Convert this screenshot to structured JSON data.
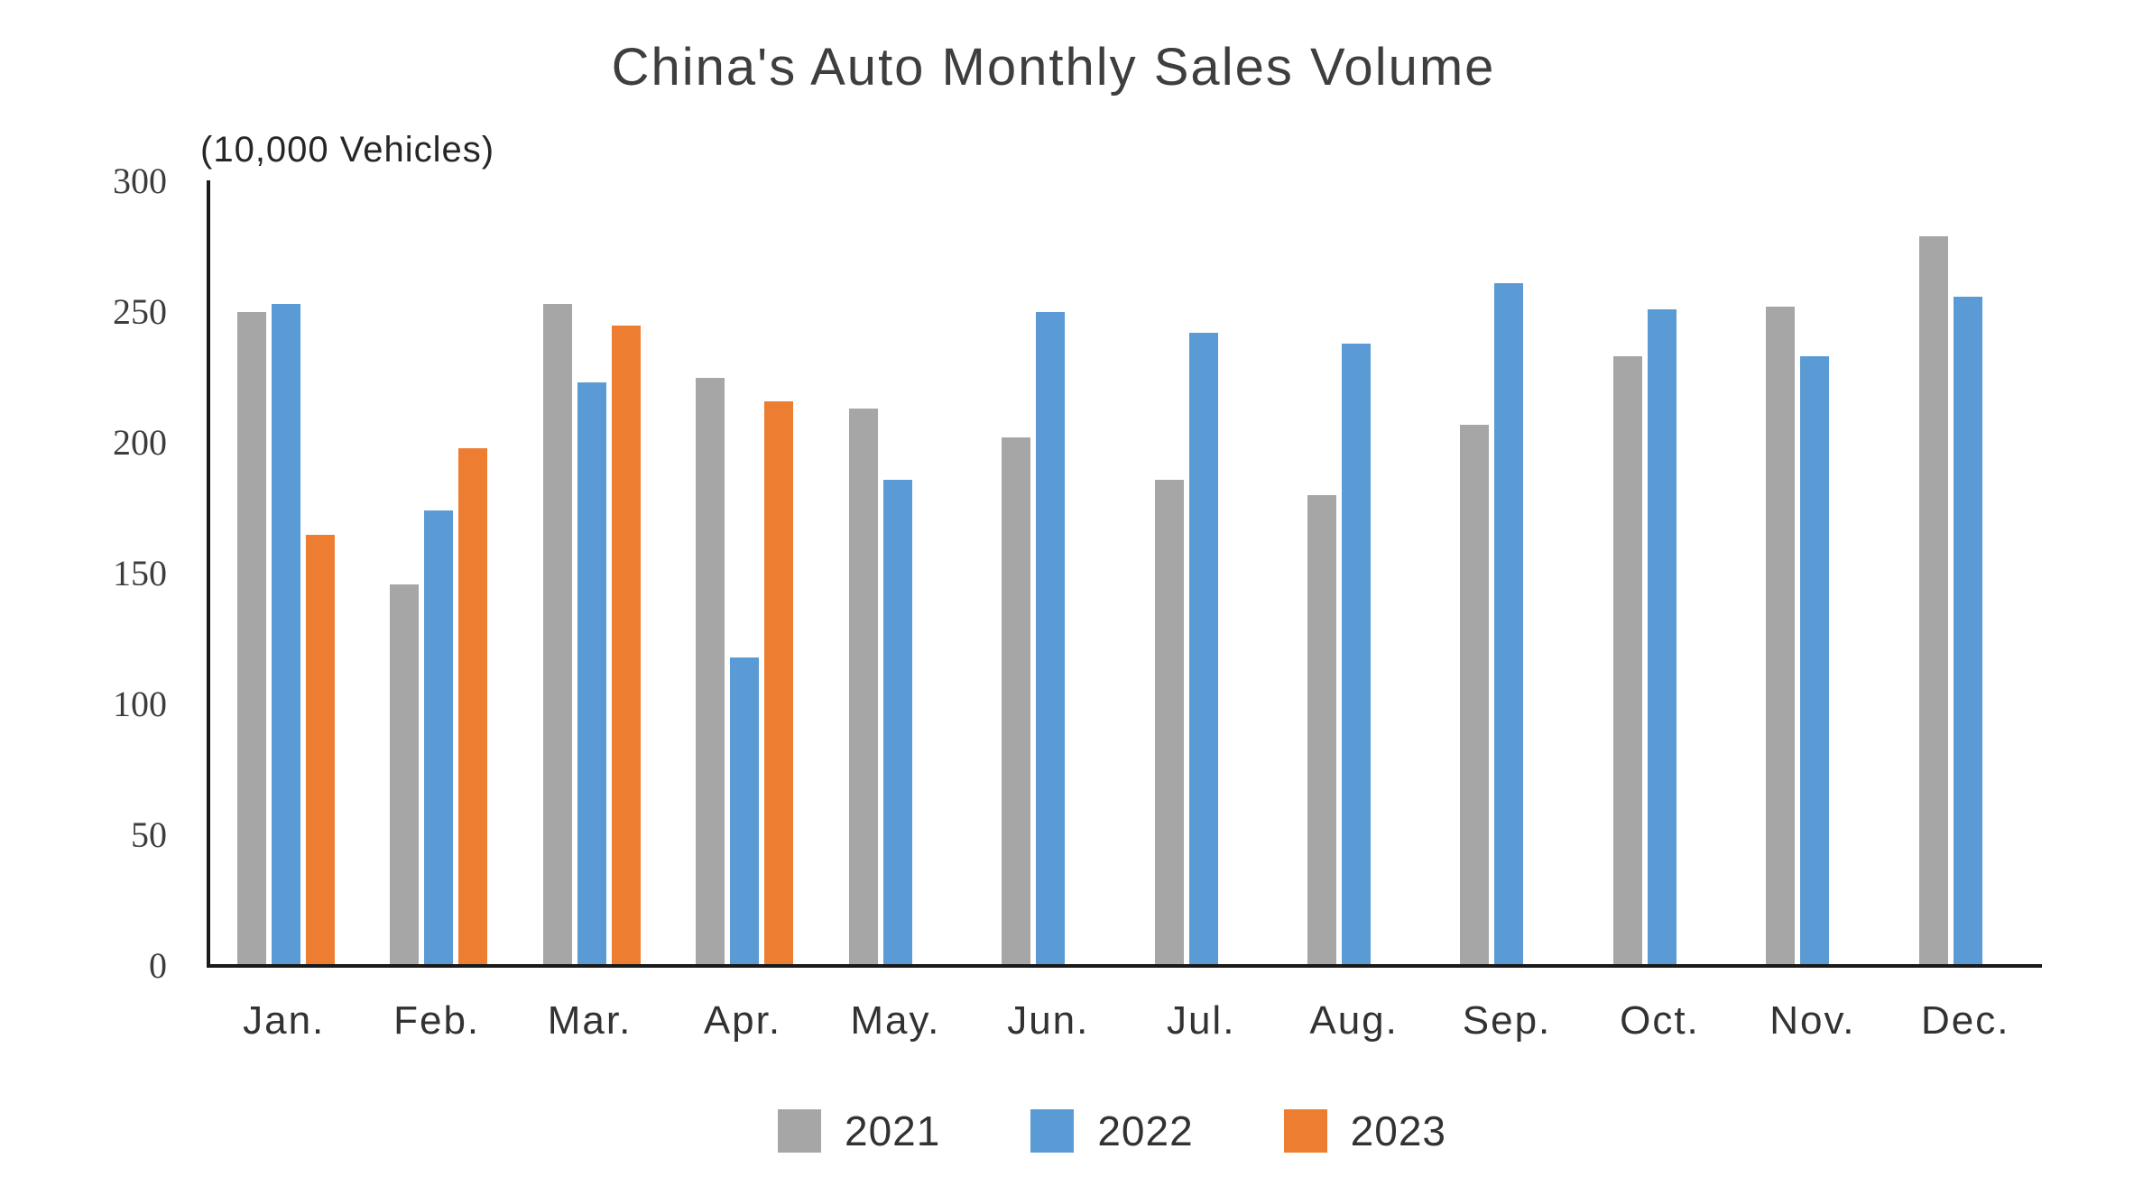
{
  "chart_data": {
    "type": "bar",
    "title": "China's Auto Monthly Sales Volume",
    "unit_label": "(10,000 Vehicles)",
    "categories": [
      "Jan.",
      "Feb.",
      "Mar.",
      "Apr.",
      "May.",
      "Jun.",
      "Jul.",
      "Aug.",
      "Sep.",
      "Oct.",
      "Nov.",
      "Dec."
    ],
    "series": [
      {
        "name": "2021",
        "color": "#A6A6A6",
        "values": [
          250,
          146,
          253,
          225,
          213,
          202,
          186,
          180,
          207,
          233,
          252,
          279
        ]
      },
      {
        "name": "2022",
        "color": "#5B9BD5",
        "values": [
          253,
          174,
          223,
          118,
          186,
          250,
          242,
          238,
          261,
          251,
          233,
          256
        ]
      },
      {
        "name": "2023",
        "color": "#ED7D31",
        "values": [
          165,
          198,
          245,
          216,
          null,
          null,
          null,
          null,
          null,
          null,
          null,
          null
        ]
      }
    ],
    "y_axis": {
      "min": 0,
      "max": 300,
      "tick_step": 50,
      "tick_labels": [
        "0",
        "50",
        "100",
        "150",
        "200",
        "250",
        "300"
      ]
    },
    "legend": {
      "position": "bottom",
      "entries": [
        "2021",
        "2022",
        "2023"
      ]
    },
    "grid": false,
    "colors": {
      "axis": "#1a1a1a",
      "text": "#3c3c3c",
      "background": "#ffffff"
    }
  }
}
